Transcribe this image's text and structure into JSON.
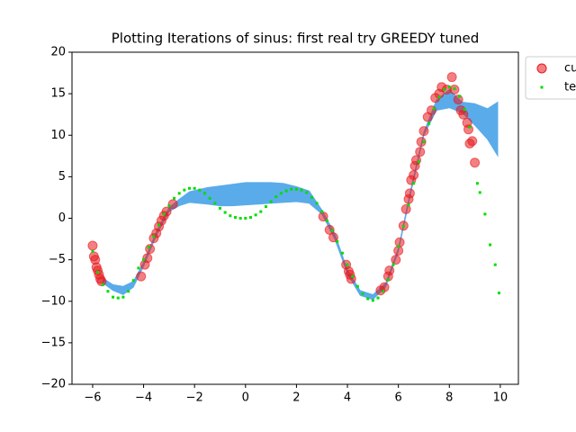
{
  "chart_data": {
    "type": "scatter",
    "title": "Plotting Iterations of sinus: first real try GREEDY tuned",
    "xlim": [
      -6.81,
      10.71
    ],
    "ylim": [
      -20,
      20
    ],
    "xticks": [
      {
        "value": -6,
        "label": "−6"
      },
      {
        "value": -4,
        "label": "−4"
      },
      {
        "value": -2,
        "label": "−2"
      },
      0,
      2,
      4,
      6,
      8,
      10
    ],
    "yticks": [
      {
        "value": -20,
        "label": "−20"
      },
      {
        "value": -15,
        "label": "−15"
      },
      {
        "value": -10,
        "label": "−10"
      },
      {
        "value": -5,
        "label": "−5"
      },
      0,
      5,
      10,
      15,
      20
    ],
    "band": {
      "color": "#5aabea",
      "x": [
        -5.6,
        -5.2,
        -4.8,
        -4.4,
        -4.0,
        -3.5,
        -3.0,
        -2.6,
        -2.2,
        -1.5,
        -1,
        -0.5,
        0,
        0.5,
        1,
        1.5,
        2,
        2.5,
        3,
        3.5,
        4,
        4.5,
        5,
        5.5,
        6,
        6.5,
        7,
        7.5,
        8,
        8.5,
        9,
        9.5,
        9.9
      ],
      "lower": [
        -7.8,
        -8.7,
        -9.2,
        -8.3,
        -5.8,
        -2.1,
        0.8,
        1.5,
        1.9,
        1.7,
        1.5,
        1.5,
        1.6,
        1.7,
        1.8,
        1.9,
        2.0,
        1.8,
        0.5,
        -2.5,
        -6.7,
        -9.3,
        -9.8,
        -8.3,
        -4,
        3.2,
        10,
        13,
        13.3,
        12.7,
        11.2,
        9.5,
        7.5
      ],
      "upper": [
        -7.2,
        -8,
        -8.2,
        -7.6,
        -5.3,
        -1.6,
        1.3,
        2.3,
        3.2,
        3.7,
        3.9,
        4.1,
        4.3,
        4.3,
        4.3,
        4.2,
        3.8,
        3.3,
        1.0,
        -1.8,
        -6.2,
        -8.7,
        -9.2,
        -7.8,
        -3.6,
        3.7,
        10.4,
        14.3,
        15.5,
        14,
        13.8,
        13.2,
        14
      ]
    },
    "series": [
      {
        "name": "cu",
        "color": "#e8181c",
        "marker": "circle",
        "x": [
          -6,
          -5.95,
          -5.9,
          -5.85,
          -5.8,
          -5.75,
          -5.7,
          -5.65,
          -4.1,
          -3.95,
          -3.85,
          -3.75,
          -3.6,
          -3.5,
          -3.4,
          -3.3,
          -3.2,
          -3.1,
          -2.85,
          3.05,
          3.3,
          3.45,
          3.95,
          4.05,
          4.1,
          4.15,
          5.3,
          5.45,
          5.6,
          5.65,
          5.9,
          6.0,
          6.05,
          6.2,
          6.3,
          6.4,
          6.45,
          6.5,
          6.6,
          6.65,
          6.7,
          6.85,
          6.9,
          7.0,
          7.15,
          7.3,
          7.45,
          7.6,
          7.7,
          7.9,
          8.1,
          8.2,
          8.35,
          8.45,
          8.55,
          8.7,
          8.75,
          8.8,
          8.9,
          9.0
        ],
        "values": [
          -3.3,
          -4.6,
          -5,
          -5.9,
          -6.3,
          -6.8,
          -7.3,
          -7.6,
          -7,
          -5.6,
          -4.8,
          -3.7,
          -2.4,
          -1.8,
          -1.0,
          -0.3,
          0.3,
          0.8,
          1.7,
          0.2,
          -1.4,
          -2.3,
          -5.6,
          -6.4,
          -6.8,
          -7.3,
          -8.7,
          -8.3,
          -7,
          -6.3,
          -5,
          -3.9,
          -2.9,
          -0.9,
          1.1,
          2.3,
          3.0,
          4.6,
          5.2,
          6.3,
          7,
          8,
          9.2,
          10.5,
          12.2,
          13,
          14.5,
          15,
          15.8,
          15.5,
          17,
          15.5,
          14.3,
          13,
          12.5,
          11.5,
          10.7,
          9,
          9.3,
          6.7
        ]
      },
      {
        "name": "te",
        "color": "#00dd00",
        "marker": "square",
        "x": [
          -6,
          -5.8,
          -5.6,
          -5.4,
          -5.2,
          -5,
          -4.8,
          -4.6,
          -4.4,
          -4.2,
          -4,
          -3.8,
          -3.6,
          -3.4,
          -3.2,
          -3,
          -2.8,
          -2.6,
          -2.4,
          -2.2,
          -2,
          -1.8,
          -1.6,
          -1.4,
          -1.2,
          -1,
          -0.8,
          -0.6,
          -0.4,
          -0.2,
          0,
          0.2,
          0.4,
          0.6,
          0.8,
          1,
          1.2,
          1.4,
          1.6,
          1.8,
          2,
          2.2,
          2.4,
          2.6,
          2.8,
          3,
          3.2,
          3.4,
          3.6,
          3.8,
          4,
          4.2,
          4.4,
          4.6,
          4.8,
          5,
          5.2,
          5.4,
          5.6,
          5.8,
          6,
          6.2,
          6.4,
          6.6,
          6.8,
          7,
          7.2,
          7.4,
          7.6,
          7.8,
          8,
          8.2,
          8.4,
          8.6,
          8.8,
          9.1,
          9.2,
          9.4,
          9.6,
          9.8,
          9.95
        ],
        "values": [
          -4,
          -6.5,
          -8,
          -8.8,
          -9.5,
          -9.6,
          -9.5,
          -8.8,
          -7.5,
          -6,
          -5,
          -3.5,
          -2.2,
          -0.8,
          0.5,
          1.5,
          2.4,
          3.0,
          3.4,
          3.6,
          3.6,
          3.4,
          3.0,
          2.4,
          1.8,
          1.2,
          0.7,
          0.3,
          0.1,
          0,
          0,
          0.1,
          0.4,
          0.8,
          1.4,
          2.0,
          2.6,
          3.0,
          3.3,
          3.5,
          3.5,
          3.4,
          3.1,
          2.5,
          1.8,
          0.8,
          -0.3,
          -1.5,
          -2.8,
          -4.2,
          -5.6,
          -7,
          -8.2,
          -9.1,
          -9.7,
          -9.9,
          -9.6,
          -8.8,
          -7.4,
          -5.6,
          -3.4,
          -1.0,
          1.6,
          4.2,
          6.8,
          9.2,
          11.4,
          13.2,
          14.6,
          15.5,
          15.8,
          15.6,
          14.7,
          13.1,
          11,
          4.2,
          3.1,
          0.5,
          -3.2,
          -5.6,
          -9
        ]
      }
    ]
  }
}
